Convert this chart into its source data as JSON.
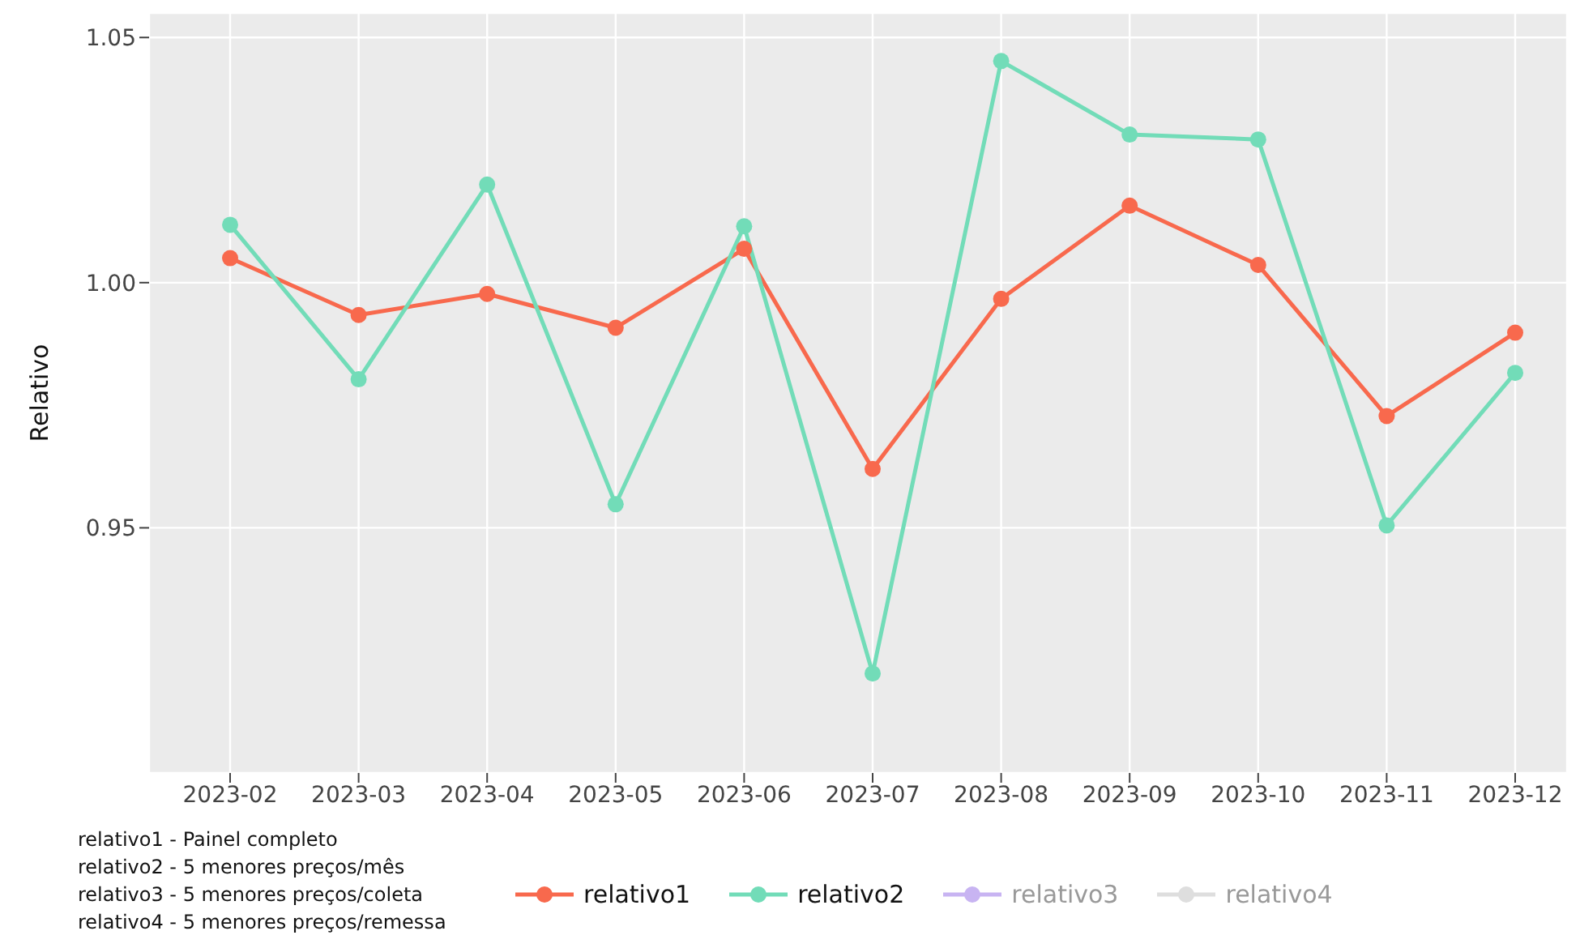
{
  "chart_data": {
    "type": "line",
    "ylabel": "Relativo",
    "categories": [
      "2023-02",
      "2023-03",
      "2023-04",
      "2023-05",
      "2023-06",
      "2023-07",
      "2023-08",
      "2023-09",
      "2023-10",
      "2023-11",
      "2023-12"
    ],
    "series": [
      {
        "name": "relativo1",
        "color": "#f8694d",
        "values": [
          1.005,
          0.9934,
          0.9977,
          0.9908,
          1.0069,
          0.962,
          0.9967,
          1.0157,
          1.0036,
          0.9728,
          0.9898
        ]
      },
      {
        "name": "relativo2",
        "color": "#72dcb8",
        "values": [
          1.0118,
          0.9803,
          1.02,
          0.9548,
          1.0115,
          0.9203,
          1.0452,
          1.0302,
          1.0292,
          0.9505,
          0.9816
        ]
      },
      {
        "name": "relativo3",
        "color": "#c8b4f2",
        "values": [
          null,
          null,
          null,
          null,
          null,
          null,
          null,
          null,
          null,
          null,
          null
        ]
      },
      {
        "name": "relativo4",
        "color": "#dedede",
        "values": [
          null,
          null,
          null,
          null,
          null,
          null,
          null,
          null,
          null,
          null,
          null
        ]
      }
    ],
    "ylim": [
      0.9,
      1.055
    ],
    "yticks": [
      0.95,
      {
        "value": 1.0,
        "label": "1.00"
      },
      1.05
    ],
    "grid": true,
    "legend": "bottom",
    "marker": "circle",
    "line_style": "solid",
    "annotations": [
      "relativo1 - Painel completo",
      "relativo2 - 5 menores preços/mês",
      "relativo3 - 5 menores preços/coleta",
      "relativo4 - 5 menores preços/remessa"
    ]
  }
}
